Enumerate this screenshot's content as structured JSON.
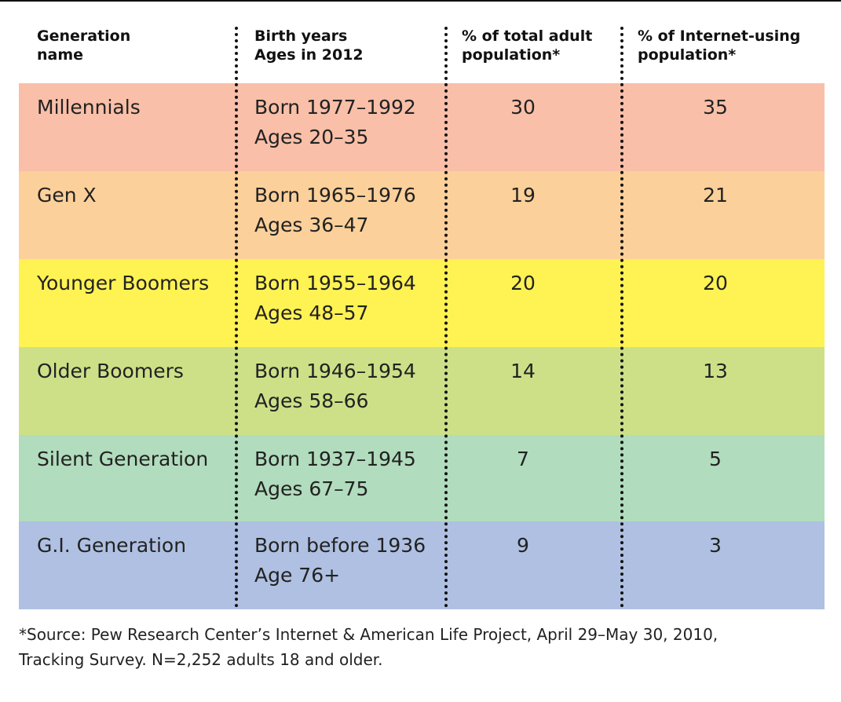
{
  "headers": {
    "generation": [
      "Generation",
      "name"
    ],
    "birth": [
      "Birth years",
      "Ages in 2012"
    ],
    "total_pct": [
      "% of total adult",
      "population*"
    ],
    "internet_pct": [
      "% of Internet-using",
      "population*"
    ]
  },
  "colors": {
    "millennials": "#f9bfa8",
    "gen_x": "#fcd09a",
    "younger_boomers": "#fff253",
    "older_boomers": "#cde088",
    "silent_generation": "#b1dcbd",
    "gi_generation": "#afc0e2"
  },
  "chart_data": {
    "type": "table",
    "columns": [
      "Generation name",
      "Birth years / Ages in 2012",
      "% of total adult population*",
      "% of Internet-using population*"
    ],
    "rows": [
      {
        "name": "Millennials",
        "born": "Born 1977–1992",
        "ages": "Ages 20–35",
        "total_pct": "30",
        "internet_pct": "35"
      },
      {
        "name": "Gen X",
        "born": "Born 1965–1976",
        "ages": "Ages 36–47",
        "total_pct": "19",
        "internet_pct": "21"
      },
      {
        "name": "Younger Boomers",
        "born": "Born 1955–1964",
        "ages": "Ages 48–57",
        "total_pct": "20",
        "internet_pct": "20"
      },
      {
        "name": "Older Boomers",
        "born": "Born 1946–1954",
        "ages": "Ages 58–66",
        "total_pct": "14",
        "internet_pct": "13"
      },
      {
        "name": "Silent Generation",
        "born": "Born 1937–1945",
        "ages": "Ages 67–75",
        "total_pct": "7",
        "internet_pct": "5"
      },
      {
        "name": "G.I. Generation",
        "born": "Born before 1936",
        "ages": "Age 76+",
        "total_pct": "9",
        "internet_pct": "3"
      }
    ]
  },
  "footnote": [
    "*Source: Pew Research Center’s Internet & American Life Project, April 29–May 30, 2010,",
    "Tracking Survey. N=2,252 adults 18 and older."
  ]
}
